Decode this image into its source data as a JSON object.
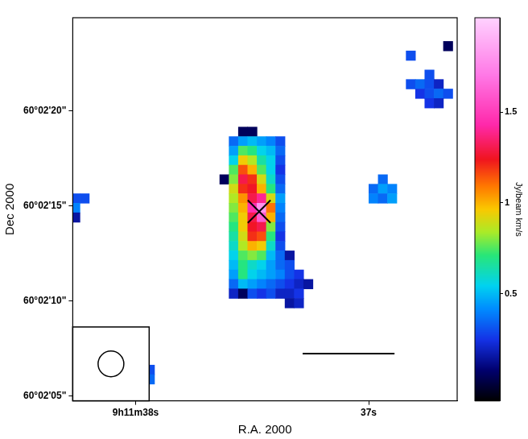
{
  "chart_data": {
    "type": "heatmap",
    "x_label": "R.A. 2000",
    "y_label": "Dec 2000",
    "xlim": [
      38.27,
      36.62
    ],
    "xticks": [
      {
        "value": 38,
        "label": "9h11m38s"
      },
      {
        "value": 37,
        "label": "37s"
      }
    ],
    "ylim": [
      4.76,
      24.88
    ],
    "yticks": [
      {
        "value": 20,
        "label": "60°02'20\""
      },
      {
        "value": 15,
        "label": "60°02'15\""
      },
      {
        "value": 10,
        "label": "60°02'10\""
      },
      {
        "value": 5,
        "label": "60°02'05\""
      }
    ],
    "grid": false,
    "cells": [
      [
        36.66,
        23.4,
        0.05
      ],
      [
        36.82,
        22.9,
        0.3
      ],
      [
        36.74,
        21.9,
        0.3
      ],
      [
        36.82,
        21.4,
        0.3
      ],
      [
        36.78,
        21.4,
        0.35
      ],
      [
        36.74,
        21.4,
        0.3
      ],
      [
        36.7,
        21.4,
        0.2
      ],
      [
        36.78,
        20.9,
        0.25
      ],
      [
        36.74,
        20.9,
        0.3
      ],
      [
        36.7,
        20.9,
        0.35
      ],
      [
        36.66,
        20.9,
        0.3
      ],
      [
        36.74,
        20.4,
        0.25
      ],
      [
        36.7,
        20.4,
        0.2
      ],
      [
        36.94,
        16.4,
        0.35
      ],
      [
        36.98,
        15.9,
        0.35
      ],
      [
        36.94,
        15.9,
        0.45
      ],
      [
        36.9,
        15.9,
        0.4
      ],
      [
        36.98,
        15.4,
        0.4
      ],
      [
        36.94,
        15.4,
        0.35
      ],
      [
        36.9,
        15.4,
        0.45
      ],
      [
        38.26,
        15.4,
        0.3
      ],
      [
        38.22,
        15.4,
        0.3
      ],
      [
        38.26,
        14.9,
        0.4
      ],
      [
        38.26,
        14.4,
        0.15
      ],
      [
        37.94,
        6.4,
        0.3
      ],
      [
        37.94,
        5.9,
        0.35
      ],
      [
        37.54,
        18.9,
        0.05
      ],
      [
        37.5,
        18.9,
        0.05
      ],
      [
        37.58,
        18.4,
        0.35
      ],
      [
        37.54,
        18.4,
        0.45
      ],
      [
        37.5,
        18.4,
        0.5
      ],
      [
        37.46,
        18.4,
        0.45
      ],
      [
        37.42,
        18.4,
        0.4
      ],
      [
        37.38,
        18.4,
        0.3
      ],
      [
        37.58,
        17.9,
        0.45
      ],
      [
        37.54,
        17.9,
        0.75
      ],
      [
        37.5,
        17.9,
        0.7
      ],
      [
        37.46,
        17.9,
        0.55
      ],
      [
        37.42,
        17.9,
        0.5
      ],
      [
        37.38,
        17.9,
        0.35
      ],
      [
        37.58,
        17.4,
        0.55
      ],
      [
        37.54,
        17.4,
        0.95
      ],
      [
        37.5,
        17.4,
        0.85
      ],
      [
        37.46,
        17.4,
        0.65
      ],
      [
        37.42,
        17.4,
        0.55
      ],
      [
        37.38,
        17.4,
        0.3
      ],
      [
        37.58,
        16.9,
        0.75
      ],
      [
        37.54,
        16.9,
        1.15
      ],
      [
        37.5,
        16.9,
        1.0
      ],
      [
        37.46,
        16.9,
        0.75
      ],
      [
        37.42,
        16.9,
        0.55
      ],
      [
        37.38,
        16.9,
        0.25
      ],
      [
        37.62,
        16.4,
        0.05
      ],
      [
        37.58,
        16.4,
        0.8
      ],
      [
        37.54,
        16.4,
        1.3
      ],
      [
        37.5,
        16.4,
        1.2
      ],
      [
        37.46,
        16.4,
        0.9
      ],
      [
        37.42,
        16.4,
        0.6
      ],
      [
        37.38,
        16.4,
        0.3
      ],
      [
        37.58,
        15.9,
        0.9
      ],
      [
        37.54,
        15.9,
        1.2
      ],
      [
        37.5,
        15.9,
        1.25
      ],
      [
        37.46,
        15.9,
        1.0
      ],
      [
        37.42,
        15.9,
        0.7
      ],
      [
        37.38,
        15.9,
        0.35
      ],
      [
        37.58,
        15.4,
        0.85
      ],
      [
        37.54,
        15.4,
        1.05
      ],
      [
        37.5,
        15.4,
        1.3
      ],
      [
        37.46,
        15.4,
        1.4
      ],
      [
        37.42,
        15.4,
        0.9
      ],
      [
        37.38,
        15.4,
        0.45
      ],
      [
        37.58,
        14.9,
        0.8
      ],
      [
        37.54,
        14.9,
        1.0
      ],
      [
        37.5,
        14.9,
        1.45
      ],
      [
        37.46,
        14.9,
        1.8
      ],
      [
        37.42,
        14.9,
        1.1
      ],
      [
        37.38,
        14.9,
        0.4
      ],
      [
        37.58,
        14.4,
        0.75
      ],
      [
        37.54,
        14.4,
        0.95
      ],
      [
        37.5,
        14.4,
        1.3
      ],
      [
        37.46,
        14.4,
        1.6
      ],
      [
        37.42,
        14.4,
        1.0
      ],
      [
        37.38,
        14.4,
        0.35
      ],
      [
        37.58,
        13.9,
        0.7
      ],
      [
        37.54,
        13.9,
        0.95
      ],
      [
        37.5,
        13.9,
        1.25
      ],
      [
        37.46,
        13.9,
        1.3
      ],
      [
        37.42,
        13.9,
        0.8
      ],
      [
        37.38,
        13.9,
        0.3
      ],
      [
        37.58,
        13.4,
        0.65
      ],
      [
        37.54,
        13.4,
        0.9
      ],
      [
        37.5,
        13.4,
        1.2
      ],
      [
        37.46,
        13.4,
        1.15
      ],
      [
        37.42,
        13.4,
        0.7
      ],
      [
        37.38,
        13.4,
        0.25
      ],
      [
        37.58,
        12.9,
        0.6
      ],
      [
        37.54,
        12.9,
        0.85
      ],
      [
        37.5,
        12.9,
        1.0
      ],
      [
        37.46,
        12.9,
        0.95
      ],
      [
        37.42,
        12.9,
        0.6
      ],
      [
        37.38,
        12.9,
        0.3
      ],
      [
        37.58,
        12.4,
        0.55
      ],
      [
        37.54,
        12.4,
        0.75
      ],
      [
        37.5,
        12.4,
        0.8
      ],
      [
        37.46,
        12.4,
        0.75
      ],
      [
        37.42,
        12.4,
        0.5
      ],
      [
        37.38,
        12.4,
        0.35
      ],
      [
        37.34,
        12.4,
        0.15
      ],
      [
        37.58,
        11.9,
        0.5
      ],
      [
        37.54,
        11.9,
        0.7
      ],
      [
        37.5,
        11.9,
        0.6
      ],
      [
        37.46,
        11.9,
        0.55
      ],
      [
        37.42,
        11.9,
        0.45
      ],
      [
        37.38,
        11.9,
        0.35
      ],
      [
        37.34,
        11.9,
        0.3
      ],
      [
        37.58,
        11.4,
        0.45
      ],
      [
        37.54,
        11.4,
        0.7
      ],
      [
        37.5,
        11.4,
        0.55
      ],
      [
        37.46,
        11.4,
        0.5
      ],
      [
        37.42,
        11.4,
        0.45
      ],
      [
        37.38,
        11.4,
        0.4
      ],
      [
        37.34,
        11.4,
        0.3
      ],
      [
        37.3,
        11.4,
        0.25
      ],
      [
        37.58,
        10.9,
        0.35
      ],
      [
        37.54,
        10.9,
        0.5
      ],
      [
        37.5,
        10.9,
        0.45
      ],
      [
        37.46,
        10.9,
        0.4
      ],
      [
        37.42,
        10.9,
        0.35
      ],
      [
        37.38,
        10.9,
        0.3
      ],
      [
        37.34,
        10.9,
        0.25
      ],
      [
        37.3,
        10.9,
        0.2
      ],
      [
        37.26,
        10.9,
        0.15
      ],
      [
        37.58,
        10.4,
        0.2
      ],
      [
        37.54,
        10.4,
        0.05
      ],
      [
        37.5,
        10.4,
        0.3
      ],
      [
        37.46,
        10.4,
        0.25
      ],
      [
        37.42,
        10.4,
        0.3
      ],
      [
        37.38,
        10.4,
        0.2
      ],
      [
        37.34,
        10.4,
        0.2
      ],
      [
        37.3,
        10.4,
        0.25
      ],
      [
        37.34,
        9.9,
        0.15
      ],
      [
        37.3,
        9.9,
        0.2
      ]
    ],
    "colorbar": {
      "label": "Jy/beam km/s",
      "lim": [
        -0.09,
        2.02
      ],
      "ticks": [
        0.5,
        1,
        1.5
      ]
    },
    "markers": [
      {
        "x": 37.47,
        "y": 14.7,
        "marker": "x",
        "color": "#000000"
      }
    ]
  }
}
